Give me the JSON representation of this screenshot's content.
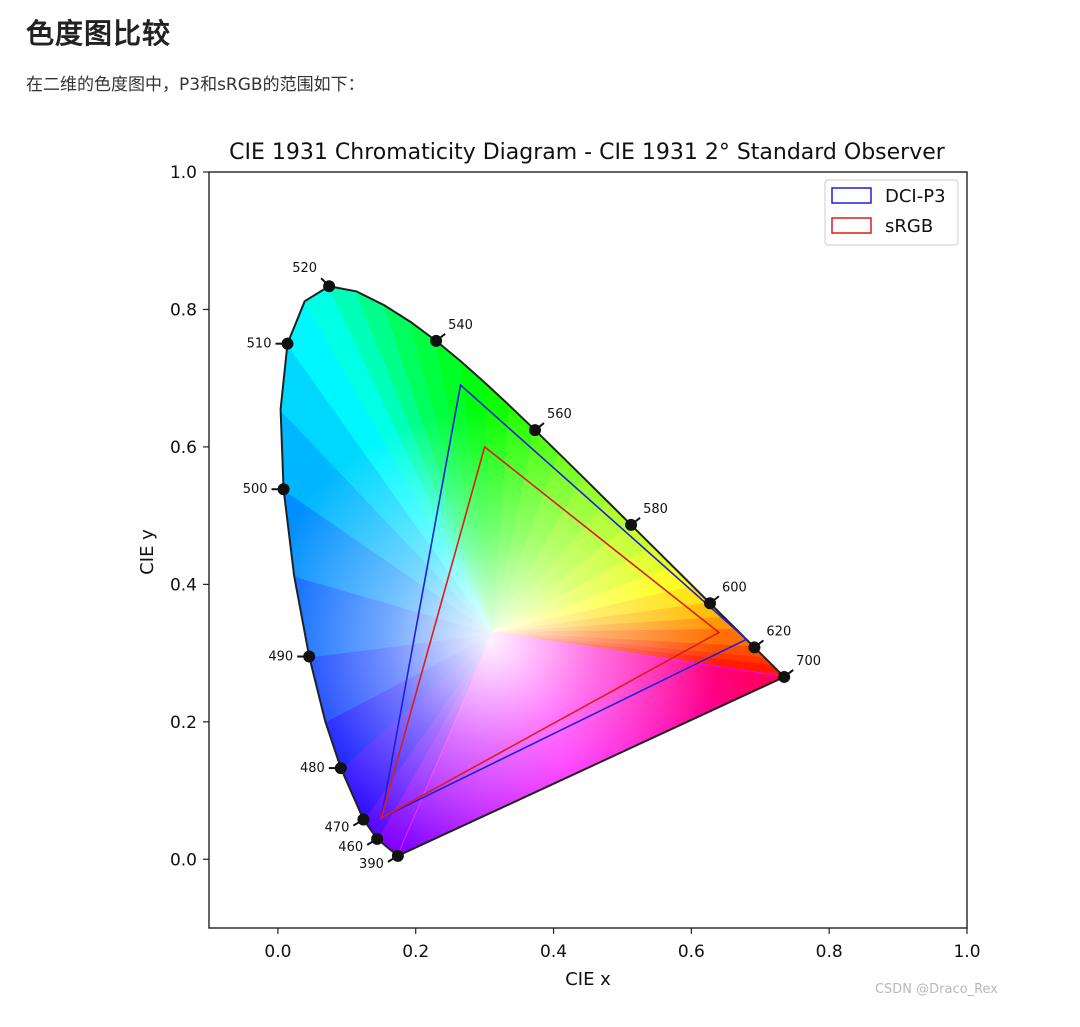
{
  "article": {
    "heading": "色度图比较",
    "intro": "在二维的色度图中，P3和sRGB的范围如下："
  },
  "watermark": "CSDN @Draco_Rex",
  "chart_data": {
    "type": "chromaticity-diagram",
    "title": "CIE 1931 Chromaticity Diagram - CIE 1931 2° Standard Observer",
    "xlabel": "CIE x",
    "ylabel": "CIE y",
    "xlim": [
      -0.1,
      1.0
    ],
    "ylim": [
      -0.1,
      1.0
    ],
    "xticks": [
      0.0,
      0.2,
      0.4,
      0.6,
      0.8,
      1.0
    ],
    "yticks": [
      0.0,
      0.2,
      0.4,
      0.6,
      0.8,
      1.0
    ],
    "xtick_labels": [
      "0.0",
      "0.2",
      "0.4",
      "0.6",
      "0.8",
      "1.0"
    ],
    "ytick_labels": [
      "0.0",
      "0.2",
      "0.4",
      "0.6",
      "0.8",
      "1.0"
    ],
    "grid": false,
    "legend_position": "top-right",
    "spectral_locus": [
      [
        0.1741,
        0.005
      ],
      [
        0.144,
        0.0297
      ],
      [
        0.1241,
        0.0578
      ],
      [
        0.0913,
        0.1327
      ],
      [
        0.0687,
        0.2007
      ],
      [
        0.0454,
        0.295
      ],
      [
        0.0235,
        0.4127
      ],
      [
        0.0082,
        0.5384
      ],
      [
        0.0039,
        0.6548
      ],
      [
        0.0139,
        0.7502
      ],
      [
        0.0389,
        0.812
      ],
      [
        0.0743,
        0.8338
      ],
      [
        0.1142,
        0.8262
      ],
      [
        0.1547,
        0.8059
      ],
      [
        0.1929,
        0.7816
      ],
      [
        0.2296,
        0.7543
      ],
      [
        0.2658,
        0.7243
      ],
      [
        0.3016,
        0.6923
      ],
      [
        0.3373,
        0.6589
      ],
      [
        0.3731,
        0.6245
      ],
      [
        0.4087,
        0.5896
      ],
      [
        0.4441,
        0.5547
      ],
      [
        0.4788,
        0.5202
      ],
      [
        0.5125,
        0.4866
      ],
      [
        0.5448,
        0.4544
      ],
      [
        0.5752,
        0.4242
      ],
      [
        0.6029,
        0.3965
      ],
      [
        0.627,
        0.3725
      ],
      [
        0.6482,
        0.3514
      ],
      [
        0.6658,
        0.334
      ],
      [
        0.6915,
        0.3083
      ],
      [
        0.7079,
        0.292
      ],
      [
        0.719,
        0.2809
      ],
      [
        0.7347,
        0.2653
      ]
    ],
    "wavelength_markers": [
      {
        "label": "390",
        "x": 0.1741,
        "y": 0.005,
        "side": "left-down"
      },
      {
        "label": "460",
        "x": 0.144,
        "y": 0.0297,
        "side": "left-down"
      },
      {
        "label": "470",
        "x": 0.1241,
        "y": 0.0578,
        "side": "left-down"
      },
      {
        "label": "480",
        "x": 0.0913,
        "y": 0.1327,
        "side": "left"
      },
      {
        "label": "490",
        "x": 0.0454,
        "y": 0.295,
        "side": "left"
      },
      {
        "label": "500",
        "x": 0.0082,
        "y": 0.5384,
        "side": "left"
      },
      {
        "label": "510",
        "x": 0.0139,
        "y": 0.7502,
        "side": "left"
      },
      {
        "label": "520",
        "x": 0.0743,
        "y": 0.8338,
        "side": "left-up"
      },
      {
        "label": "540",
        "x": 0.2296,
        "y": 0.7543,
        "side": "right-up"
      },
      {
        "label": "560",
        "x": 0.3731,
        "y": 0.6245,
        "side": "right-up"
      },
      {
        "label": "580",
        "x": 0.5125,
        "y": 0.4866,
        "side": "right-up"
      },
      {
        "label": "600",
        "x": 0.627,
        "y": 0.3725,
        "side": "right-up"
      },
      {
        "label": "620",
        "x": 0.6915,
        "y": 0.3083,
        "side": "right-up"
      },
      {
        "label": "700",
        "x": 0.7347,
        "y": 0.2653,
        "side": "right-up"
      }
    ],
    "series": [
      {
        "name": "DCI-P3",
        "color": "#1f1fd6",
        "points": [
          [
            0.68,
            0.32
          ],
          [
            0.265,
            0.69
          ],
          [
            0.15,
            0.06
          ]
        ]
      },
      {
        "name": "sRGB",
        "color": "#e01b1b",
        "points": [
          [
            0.64,
            0.33
          ],
          [
            0.3,
            0.6
          ],
          [
            0.15,
            0.06
          ]
        ]
      }
    ]
  }
}
